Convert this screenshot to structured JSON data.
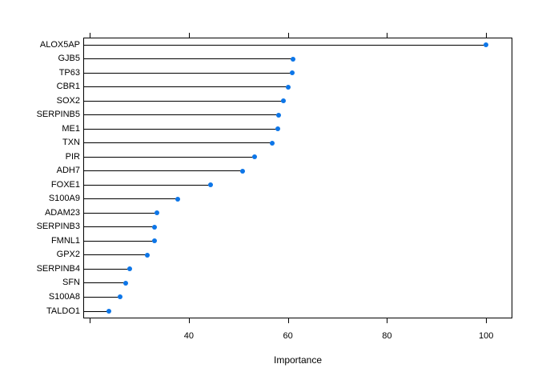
{
  "chart_data": {
    "type": "scatter",
    "subtype": "horizontal-lollipop-dotchart",
    "title": "",
    "xlabel": "Importance",
    "ylabel": "",
    "xlim": [
      18.7,
      105.3
    ],
    "grid": false,
    "legend": "none",
    "point_color": "#0d76e8",
    "line_color": "#000000",
    "categories": [
      "ALOX5AP",
      "GJB5",
      "TP63",
      "CBR1",
      "SOX2",
      "SERPINB5",
      "ME1",
      "TXN",
      "PIR",
      "ADH7",
      "FOXE1",
      "S100A9",
      "ADAM23",
      "SERPINB3",
      "FMNL1",
      "GPX2",
      "SERPINB4",
      "SFN",
      "S100A8",
      "TALDO1"
    ],
    "values": [
      100.0,
      61.1,
      60.8,
      60.1,
      59.1,
      58.2,
      57.9,
      56.8,
      53.3,
      50.9,
      44.4,
      37.7,
      33.5,
      33.0,
      33.0,
      31.7,
      28.0,
      27.3,
      26.1,
      23.8
    ],
    "x_ticks": [
      {
        "value": 20,
        "label": ""
      },
      {
        "value": 40,
        "label": "40"
      },
      {
        "value": 60,
        "label": "60"
      },
      {
        "value": 80,
        "label": "80"
      },
      {
        "value": 100,
        "label": "100"
      }
    ]
  }
}
